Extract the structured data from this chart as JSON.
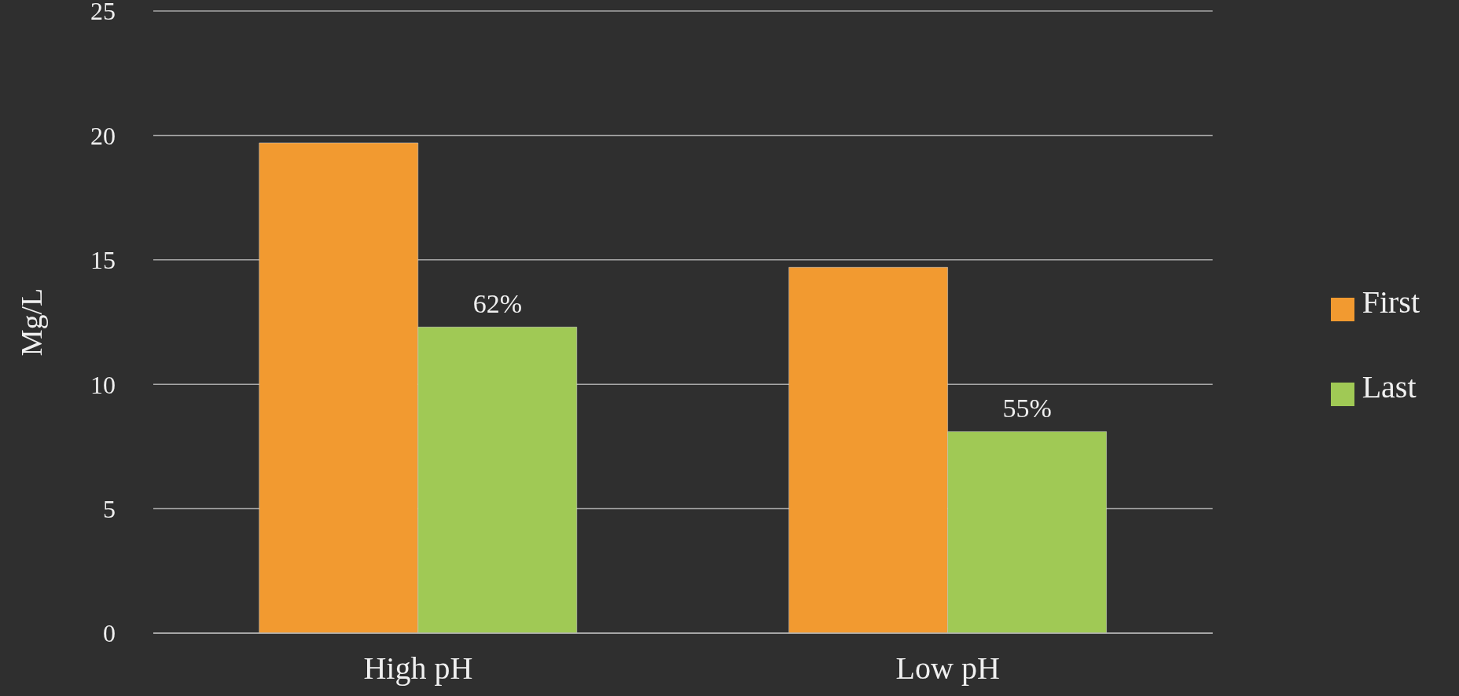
{
  "chart_data": {
    "type": "bar",
    "ylabel": "Mg/L",
    "categories": [
      "High pH",
      "Low pH"
    ],
    "series": [
      {
        "name": "First",
        "color": "#f29a30",
        "values": [
          19.7,
          14.7
        ]
      },
      {
        "name": "Last",
        "color": "#a0c955",
        "values": [
          12.3,
          8.1
        ]
      }
    ],
    "annotations": [
      {
        "text": "62%",
        "x": "High pH",
        "y": 12.3
      },
      {
        "text": "55%",
        "x": "Low pH",
        "y": 8.1
      }
    ],
    "ylim": [
      0,
      25
    ],
    "yticks": [
      0,
      5,
      10,
      15,
      20,
      25
    ],
    "grid": "y",
    "legend": "right"
  }
}
